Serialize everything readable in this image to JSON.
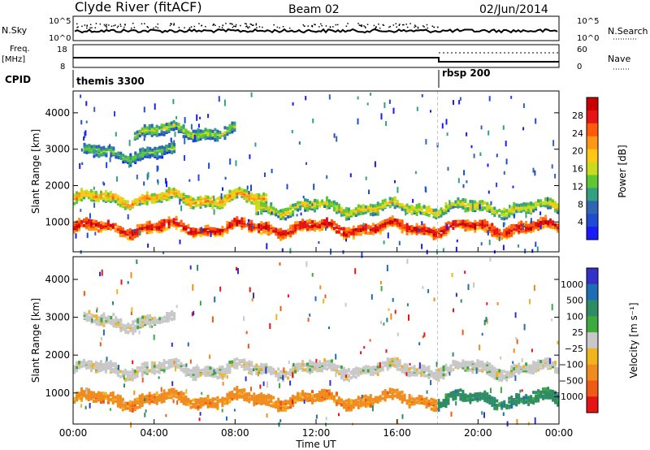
{
  "header": {
    "station": "Clyde River (fitACF)",
    "beam": "Beam 02",
    "date": "02/Jun/2014"
  },
  "top_panels": {
    "nsky_label": "N.Sky",
    "nsky_ticks": [
      "10^5",
      "10^0"
    ],
    "nsearch_ticks": [
      "10^5",
      "10^0"
    ],
    "nsearch_label": "N.Search",
    "freq_label": "Freq.",
    "freq_unit": "[MHz]",
    "freq_ticks": [
      "18",
      "8"
    ],
    "nave_ticks": [
      "60",
      "0"
    ],
    "nave_label": "Nave",
    "cpid_label": "CPID",
    "cpid_segments": [
      {
        "name": "themis 3300",
        "start_hour": 0
      },
      {
        "name": "rbsp 200",
        "start_hour": 18
      }
    ]
  },
  "chart_data": [
    {
      "type": "heatmap",
      "title": "",
      "quantity": "Power",
      "xlabel": "Time UT",
      "ylabel": "Slant Range [km]",
      "x_ticks": [
        "00:00",
        "04:00",
        "08:00",
        "12:00",
        "16:00",
        "20:00",
        "00:00"
      ],
      "xlim_hours": [
        0,
        24
      ],
      "y_ticks": [
        1000,
        2000,
        3000,
        4000
      ],
      "ylim_km": [
        180,
        4600
      ],
      "colorbar": {
        "label": "Power [dB]",
        "ticks": [
          4,
          8,
          12,
          16,
          20,
          24,
          28
        ],
        "range": [
          0,
          32
        ],
        "colors": [
          "#1a1aff",
          "#1e4bd2",
          "#2f66b4",
          "#32a082",
          "#5fc832",
          "#c8dc1e",
          "#ffc814",
          "#ff9614",
          "#ff5a0a",
          "#e61414",
          "#c80000"
        ]
      },
      "bands": [
        {
          "range_km": 850,
          "start_h": 0.0,
          "end_h": 24.0,
          "level": 0.8
        },
        {
          "range_km": 1650,
          "start_h": 0.0,
          "end_h": 9.5,
          "level": 0.55
        },
        {
          "range_km": 1400,
          "start_h": 9.0,
          "end_h": 24.0,
          "level": 0.45
        },
        {
          "range_km": 2900,
          "start_h": 0.5,
          "end_h": 5.0,
          "level": 0.3
        },
        {
          "range_km": 3500,
          "start_h": 3.0,
          "end_h": 8.0,
          "level": 0.35
        }
      ]
    },
    {
      "type": "heatmap",
      "title": "",
      "quantity": "Velocity",
      "xlabel": "Time UT",
      "ylabel": "Slant Range [km]",
      "x_ticks": [
        "00:00",
        "04:00",
        "08:00",
        "12:00",
        "16:00",
        "20:00",
        "00:00"
      ],
      "xlim_hours": [
        0,
        24
      ],
      "y_ticks": [
        1000,
        2000,
        3000,
        4000
      ],
      "ylim_km": [
        180,
        4600
      ],
      "colorbar": {
        "label": "Velocity [m s⁻¹]",
        "ticks": [
          "1000",
          "500",
          "100",
          "25",
          "−25",
          "−100",
          "−500",
          "−1000"
        ],
        "colors": [
          "#3232c8",
          "#1e6eb4",
          "#2d8c64",
          "#3caa3c",
          "#c8c8c8",
          "#f0b41e",
          "#f08c1e",
          "#f05a14",
          "#e61414"
        ]
      },
      "bands": [
        {
          "range_km": 850,
          "start_h": 0.0,
          "end_h": 18.0,
          "velocity_class": "-100"
        },
        {
          "range_km": 850,
          "start_h": 18.0,
          "end_h": 24.0,
          "velocity_class": "100"
        },
        {
          "range_km": 1650,
          "start_h": 0.0,
          "end_h": 24.0,
          "velocity_class": "25"
        },
        {
          "range_km": 2900,
          "start_h": 0.5,
          "end_h": 5.0,
          "velocity_class": "25"
        }
      ]
    }
  ],
  "colors": {
    "frame": "#000000",
    "gate_line": "#c8c8c8"
  }
}
